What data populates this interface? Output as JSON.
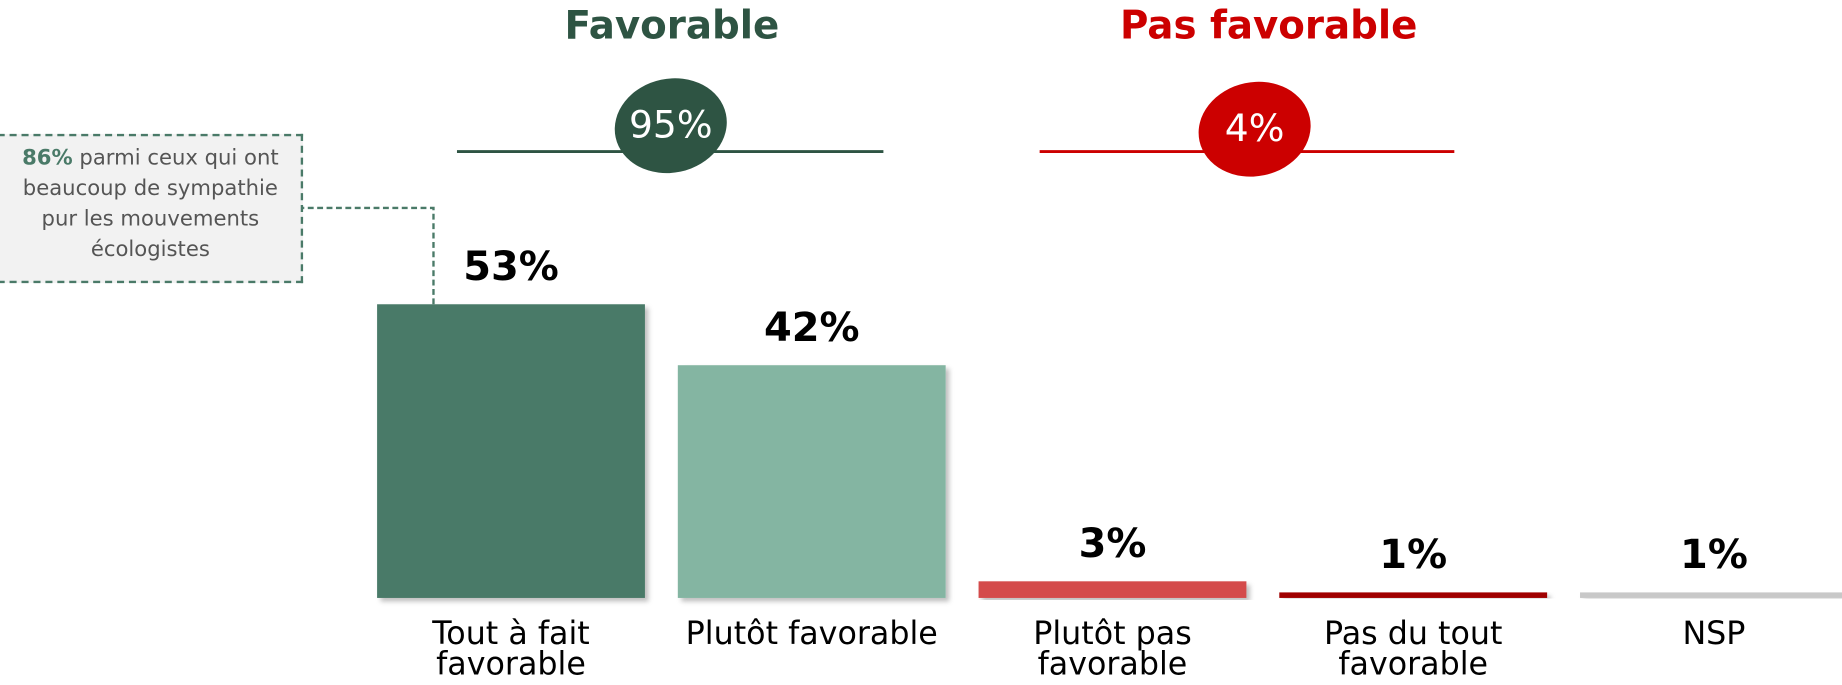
{
  "chart_data": {
    "type": "bar",
    "categories": [
      "Tout à fait favorable",
      "Plutôt favorable",
      "Plutôt pas favorable",
      "Pas du tout favorable",
      "NSP"
    ],
    "values": [
      53,
      42,
      3,
      1,
      1
    ],
    "value_labels": [
      "53%",
      "42%",
      "3%",
      "1%",
      "1%"
    ],
    "colors": [
      "#4a7a68",
      "#84b5a2",
      "#d44b4b",
      "#a00000",
      "#c8c8c8"
    ],
    "groups": [
      {
        "name": "Favorable",
        "value": 95,
        "label": "95%",
        "color": "#2e5443"
      },
      {
        "name": "Pas favorable",
        "value": 4,
        "label": "4%",
        "color": "#cc0000"
      }
    ],
    "annotation": {
      "value": 86,
      "label": "86%",
      "text": "parmi ceux qui ont beaucoup de sympathie pur les mouvements écologistes"
    }
  }
}
